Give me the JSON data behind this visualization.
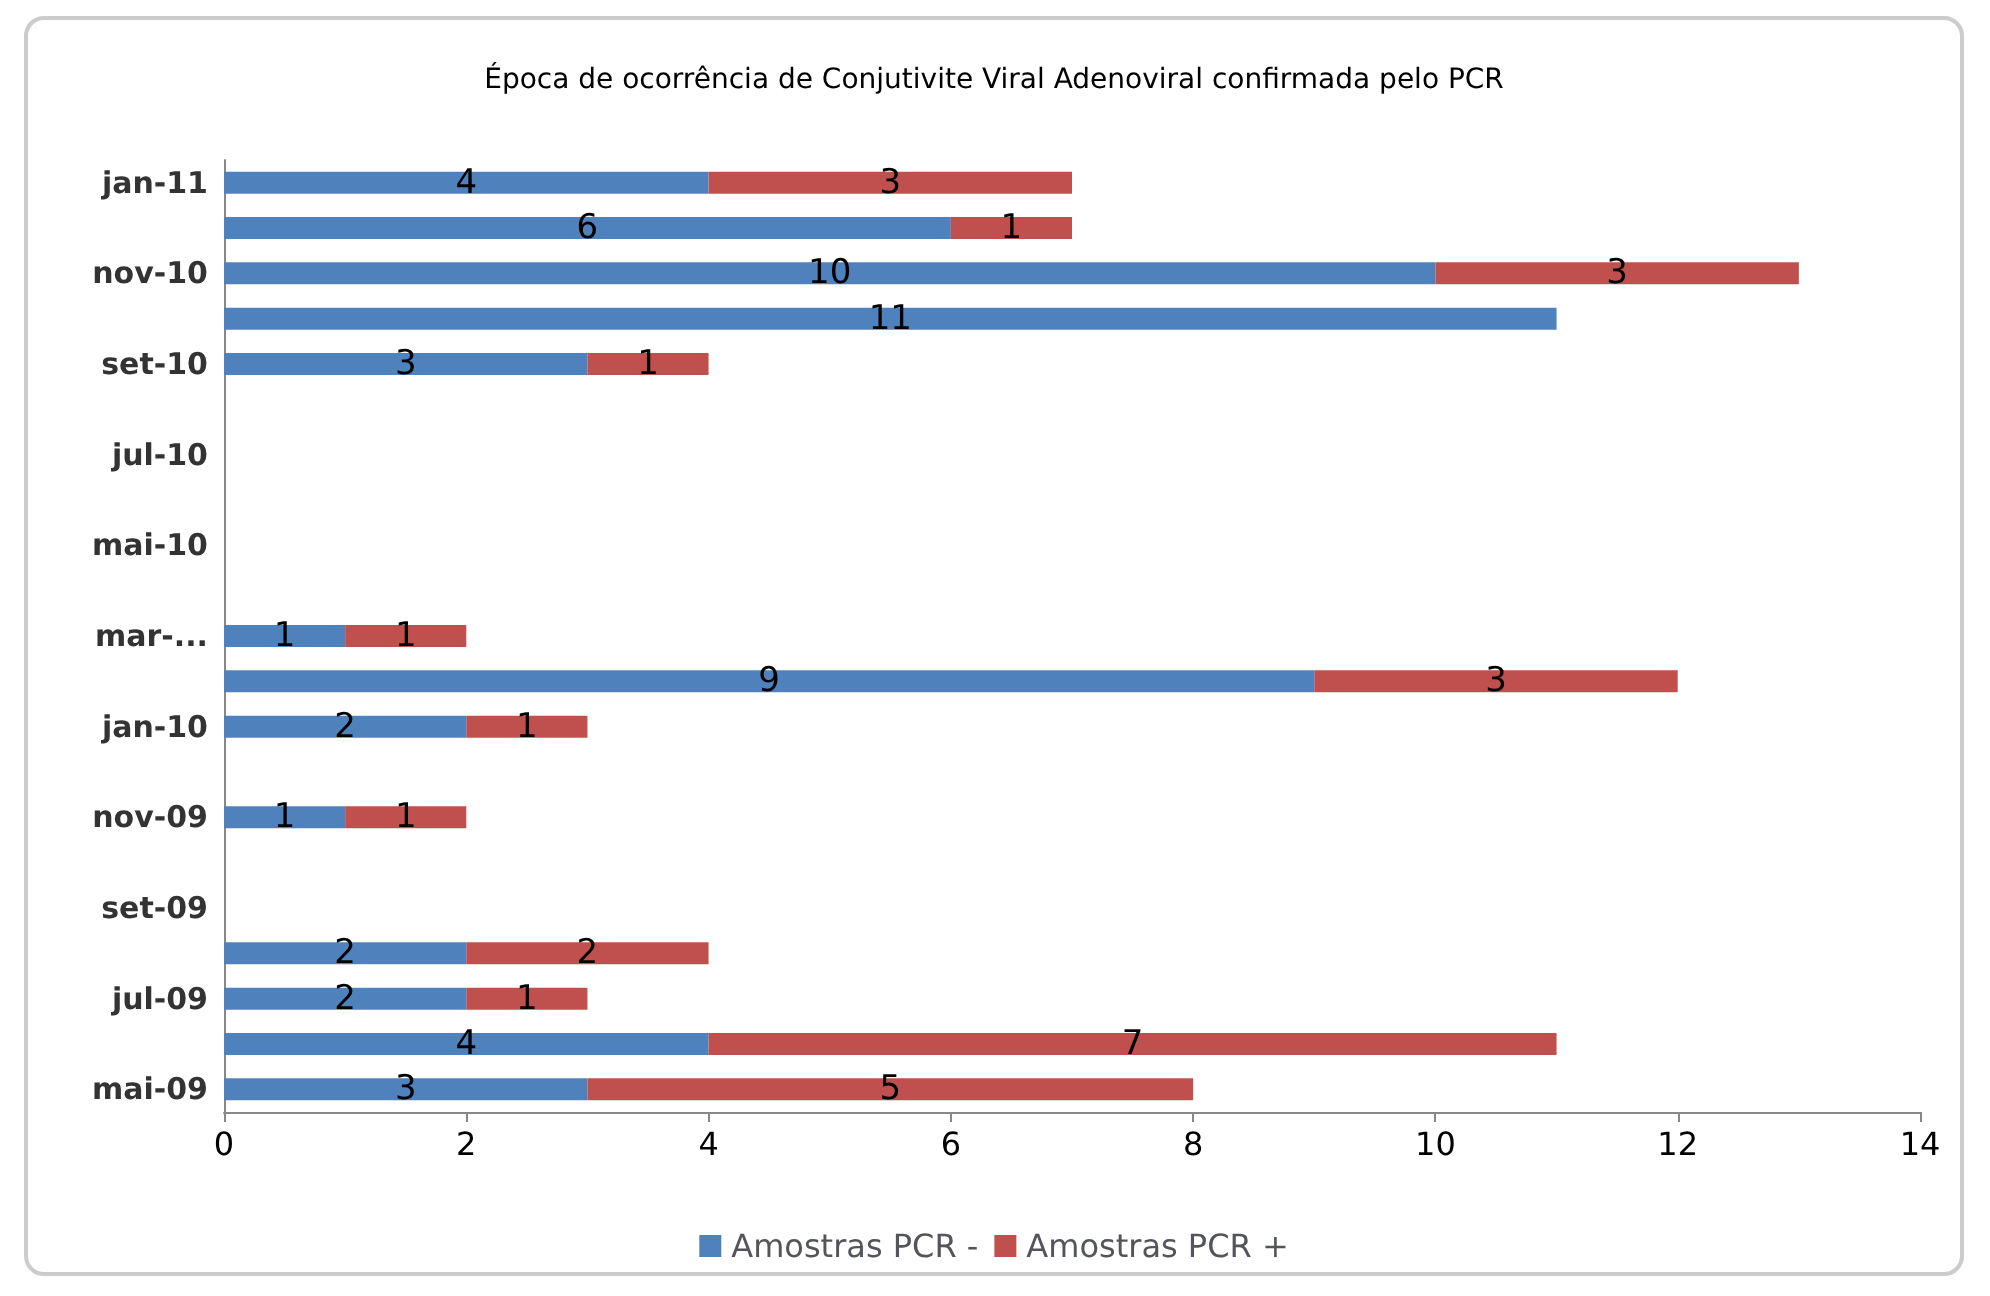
{
  "chart_data": {
    "type": "bar",
    "orientation": "horizontal",
    "stacked": true,
    "title": "Época de ocorrência de Conjutivite Viral Adenoviral confirmada pelo PCR",
    "categories": [
      "jan-11",
      null,
      "nov-10",
      null,
      "set-10",
      null,
      "jul-10",
      null,
      "mai-10",
      null,
      "mar-...",
      null,
      "jan-10",
      null,
      "nov-09",
      null,
      "set-09",
      null,
      "jul-09",
      null,
      "mai-09"
    ],
    "series": [
      {
        "name": "Amostras PCR -",
        "color": "#4f81bd",
        "values": [
          4,
          6,
          10,
          11,
          3,
          null,
          null,
          null,
          null,
          null,
          1,
          9,
          2,
          null,
          1,
          null,
          null,
          2,
          2,
          4,
          3
        ]
      },
      {
        "name": "Amostras PCR +",
        "color": "#c0504d",
        "values": [
          3,
          1,
          3,
          null,
          1,
          null,
          null,
          null,
          null,
          null,
          1,
          3,
          1,
          null,
          1,
          null,
          null,
          2,
          1,
          7,
          5
        ]
      }
    ],
    "xlim": [
      0,
      14
    ],
    "xticks": [
      0,
      2,
      4,
      6,
      8,
      10,
      12,
      14
    ],
    "grid": false,
    "legend": "bottom",
    "data_labels": true
  }
}
